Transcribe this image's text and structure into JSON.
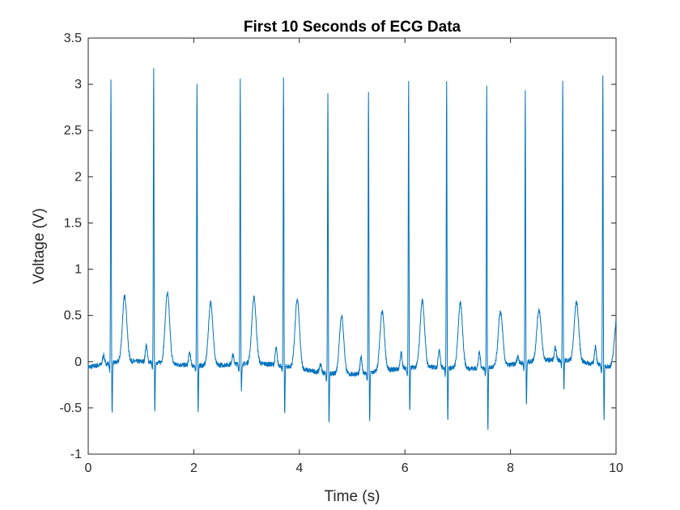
{
  "chart_data": {
    "type": "line",
    "title": "First 10 Seconds of ECG Data",
    "xlabel": "Time (s)",
    "ylabel": "Voltage (V)",
    "xlim": [
      0,
      10
    ],
    "ylim": [
      -1,
      3.5
    ],
    "xticks": [
      "0",
      "2",
      "4",
      "6",
      "8",
      "10"
    ],
    "yticks": [
      "-1",
      "-0.5",
      "0",
      "0.5",
      "1",
      "1.5",
      "2",
      "2.5",
      "3",
      "3.5"
    ],
    "grid": false,
    "colors": {
      "line": "#0072BD",
      "axis": "#262626"
    },
    "series": [
      {
        "name": "",
        "beats": [
          {
            "t": 0.43,
            "r": 3.18,
            "s": -0.5,
            "tw": 0.81,
            "p": 0.1
          },
          {
            "t": 1.24,
            "r": 3.27,
            "s": -0.48,
            "tw": 0.86,
            "p": 0.18
          },
          {
            "t": 2.06,
            "r": 3.17,
            "s": -0.45,
            "tw": 0.78,
            "p": 0.14
          },
          {
            "t": 2.88,
            "r": 3.17,
            "s": -0.25,
            "tw": 0.81,
            "p": 0.1
          },
          {
            "t": 3.7,
            "r": 3.2,
            "s": -0.47,
            "tw": 0.84,
            "p": 0.18
          },
          {
            "t": 4.54,
            "r": 3.15,
            "s": -0.5,
            "tw": 0.73,
            "p": 0.09
          },
          {
            "t": 5.31,
            "r": 3.15,
            "s": -0.48,
            "tw": 0.74,
            "p": 0.18
          },
          {
            "t": 6.07,
            "r": 3.2,
            "s": -0.43,
            "tw": 0.82,
            "p": 0.17
          },
          {
            "t": 6.79,
            "r": 3.22,
            "s": -0.53,
            "tw": 0.8,
            "p": 0.2
          },
          {
            "t": 7.55,
            "r": 3.15,
            "s": -0.62,
            "tw": 0.69,
            "p": 0.17
          },
          {
            "t": 8.28,
            "r": 3.04,
            "s": -0.42,
            "tw": 0.65,
            "p": 0.08
          },
          {
            "t": 8.99,
            "r": 3.14,
            "s": -0.28,
            "tw": 0.74,
            "p": 0.13
          },
          {
            "t": 9.75,
            "r": 3.26,
            "s": -0.53,
            "tw": 0.62,
            "p": 0.2
          }
        ]
      }
    ]
  }
}
